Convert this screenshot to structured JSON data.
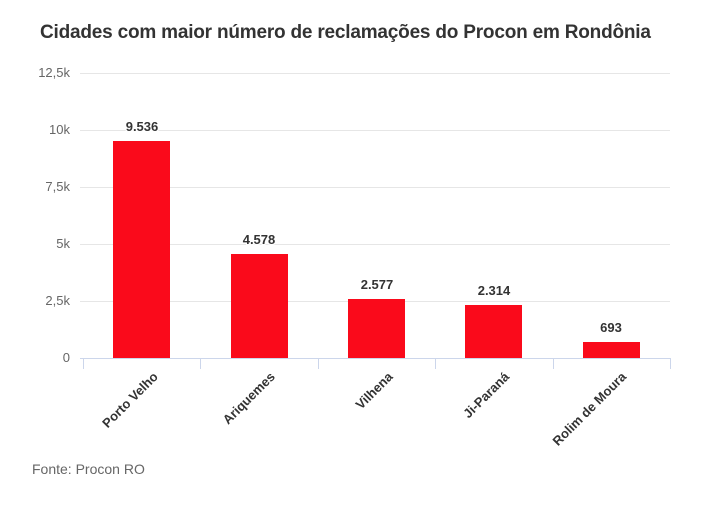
{
  "page": {
    "title": "Cidades com maior número de reclamações do Procon em Rondônia",
    "source": "Fonte: Procon RO"
  },
  "chart_data": {
    "type": "bar",
    "title": "Cidades com maior número de reclamações do Procon em Rondônia",
    "categories": [
      "Porto Velho",
      "Ariquemes",
      "Vilhena",
      "Ji-Paraná",
      "Rolim de Moura"
    ],
    "values": [
      9536,
      4578,
      2577,
      2314,
      693
    ],
    "value_labels": [
      "9.536",
      "4.578",
      "2.577",
      "2.314",
      "693"
    ],
    "xlabel": "",
    "ylabel": "",
    "ylim": [
      0,
      12500
    ],
    "ytick_values": [
      0,
      2500,
      5000,
      7500,
      10000,
      12500
    ],
    "ytick_labels": [
      "0",
      "2,5k",
      "5k",
      "7,5k",
      "10k",
      "12,5k"
    ],
    "grid": true,
    "legend": false,
    "bar_color": "#fa0a1b",
    "grid_color": "#e6e6e6",
    "axis_line_color": "#ccd6eb",
    "label_color": "#333333",
    "tick_label_color": "#666666",
    "source": "Fonte: Procon RO"
  }
}
